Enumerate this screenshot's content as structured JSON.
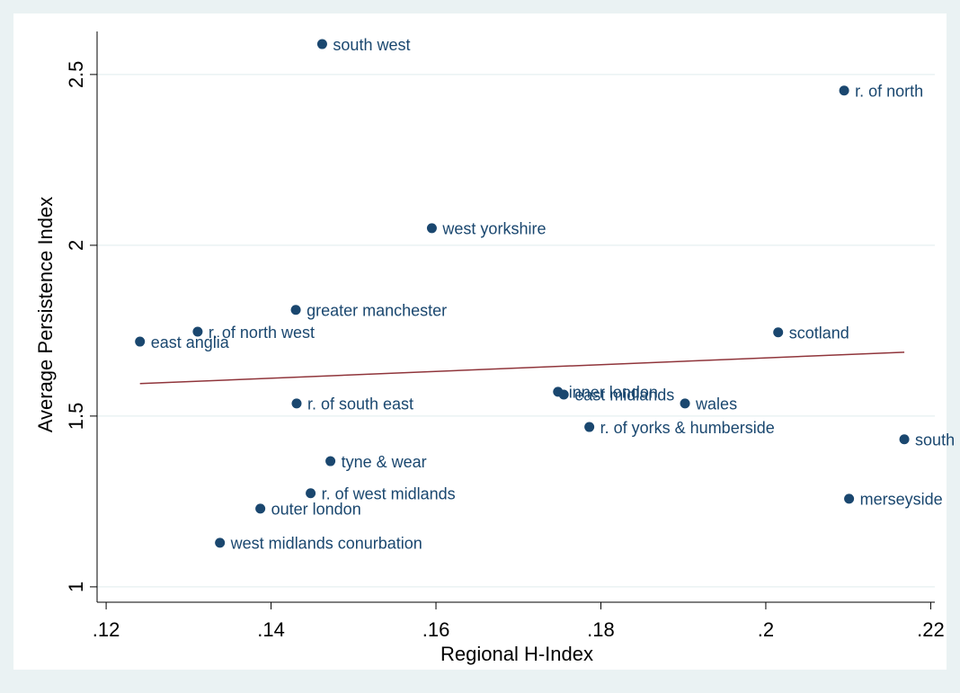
{
  "chart_data": {
    "type": "scatter",
    "x_label": "Regional H-Index",
    "y_label": "Average Persistence Index",
    "labels": [
      "south west",
      "r. of north",
      "west yorkshire",
      "greater manchester",
      "r. of north west",
      "east anglia",
      "scotland",
      "inner london",
      "east midlands",
      "wales",
      "r. of south east",
      "r. of yorks & humberside",
      "south",
      "merseyside",
      "tyne & wear",
      "r. of west midlands",
      "outer london",
      "west midlands conurbation"
    ],
    "x": [
      0.1462,
      0.2095,
      0.1595,
      0.143,
      0.1311,
      0.1241,
      0.2015,
      0.1748,
      0.1755,
      0.1902,
      0.1431,
      0.1786,
      0.2168,
      0.2101,
      0.1472,
      0.1448,
      0.1387,
      0.1338
    ],
    "values": [
      2.589,
      2.453,
      2.05,
      1.811,
      1.747,
      1.718,
      1.745,
      1.571,
      1.563,
      1.537,
      1.537,
      1.468,
      1.432,
      1.258,
      1.368,
      1.274,
      1.229,
      1.129
    ],
    "color": "#1a476f",
    "fit": {
      "x": [
        0.1241,
        0.2168
      ],
      "y": [
        1.595,
        1.687
      ],
      "color": "#90353b"
    },
    "xlim": [
      0.1189,
      0.2205
    ],
    "ylim": [
      0.955,
      2.626
    ],
    "xticks": [
      {
        "value": 0.12,
        "label": ".12"
      },
      {
        "value": 0.14,
        "label": ".14"
      },
      {
        "value": 0.16,
        "label": ".16"
      },
      {
        "value": 0.18,
        "label": ".18"
      },
      {
        "value": 0.2,
        "label": ".2"
      },
      {
        "value": 0.22,
        "label": ".22"
      }
    ],
    "yticks": [
      1,
      1.5,
      2,
      2.5
    ],
    "grid": true
  }
}
